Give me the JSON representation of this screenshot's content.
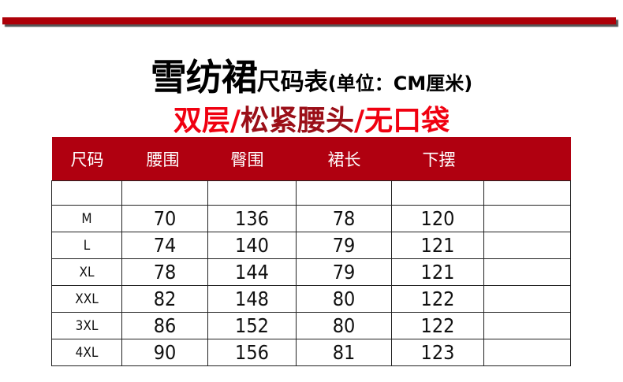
{
  "title": {
    "main": "雪纺裙",
    "sub": "尺码表",
    "unit": "(单位：CM厘米)"
  },
  "subtitle": {
    "part1": "双层/",
    "part2": "松紧腰头",
    "part3": "/无口袋"
  },
  "colors": {
    "accent": "#b00010",
    "subtitle_red": "#f00010",
    "subtitle_dark": "#9b0f18"
  },
  "table": {
    "headers": [
      "尺码",
      "腰围",
      "臀围",
      "裙长",
      "下摆",
      ""
    ],
    "rows": [
      [
        "",
        "",
        "",
        "",
        "",
        ""
      ],
      [
        "M",
        "70",
        "136",
        "78",
        "120",
        ""
      ],
      [
        "L",
        "74",
        "140",
        "79",
        "121",
        ""
      ],
      [
        "XL",
        "78",
        "144",
        "79",
        "121",
        ""
      ],
      [
        "XXL",
        "82",
        "148",
        "80",
        "122",
        ""
      ],
      [
        "3XL",
        "86",
        "152",
        "80",
        "122",
        ""
      ],
      [
        "4XL",
        "90",
        "156",
        "81",
        "123",
        ""
      ]
    ]
  }
}
